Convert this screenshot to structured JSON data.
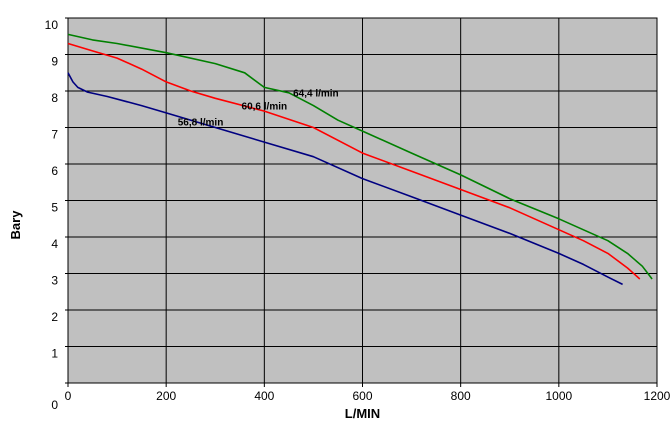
{
  "chart_data": {
    "type": "line",
    "title": "",
    "xlabel": "L/MIN",
    "ylabel": "Bary",
    "xlim": [
      0,
      1200
    ],
    "ylim": [
      0,
      10
    ],
    "x_ticks": [
      0,
      200,
      400,
      600,
      800,
      1000,
      1200
    ],
    "y_ticks": [
      0,
      1,
      2,
      3,
      4,
      5,
      6,
      7,
      8,
      9,
      10
    ],
    "grid": true,
    "plot_background": "#c0c0c0",
    "series": [
      {
        "name": "56,8 l/min",
        "color": "#000080",
        "x": [
          0,
          10,
          20,
          40,
          80,
          150,
          200,
          300,
          400,
          500,
          600,
          700,
          800,
          900,
          1000,
          1050,
          1100,
          1130
        ],
        "y": [
          8.5,
          8.25,
          8.1,
          7.97,
          7.85,
          7.6,
          7.4,
          7.0,
          6.6,
          6.2,
          5.6,
          5.1,
          4.6,
          4.1,
          3.55,
          3.25,
          2.9,
          2.7
        ]
      },
      {
        "name": "60,6 l/min",
        "color": "#ff0000",
        "x": [
          0,
          50,
          100,
          150,
          200,
          250,
          300,
          400,
          500,
          600,
          700,
          800,
          900,
          1000,
          1050,
          1100,
          1140,
          1165
        ],
        "y": [
          9.3,
          9.1,
          8.9,
          8.6,
          8.25,
          8.0,
          7.8,
          7.45,
          7.0,
          6.3,
          5.8,
          5.3,
          4.8,
          4.2,
          3.9,
          3.55,
          3.15,
          2.85
        ]
      },
      {
        "name": "64,4 l/min",
        "color": "#008000",
        "x": [
          0,
          50,
          100,
          200,
          300,
          360,
          400,
          450,
          500,
          550,
          600,
          700,
          800,
          900,
          1000,
          1100,
          1140,
          1170,
          1190
        ],
        "y": [
          9.55,
          9.4,
          9.3,
          9.05,
          8.75,
          8.5,
          8.1,
          7.95,
          7.6,
          7.2,
          6.9,
          6.3,
          5.7,
          5.05,
          4.5,
          3.9,
          3.55,
          3.2,
          2.85
        ]
      }
    ]
  }
}
